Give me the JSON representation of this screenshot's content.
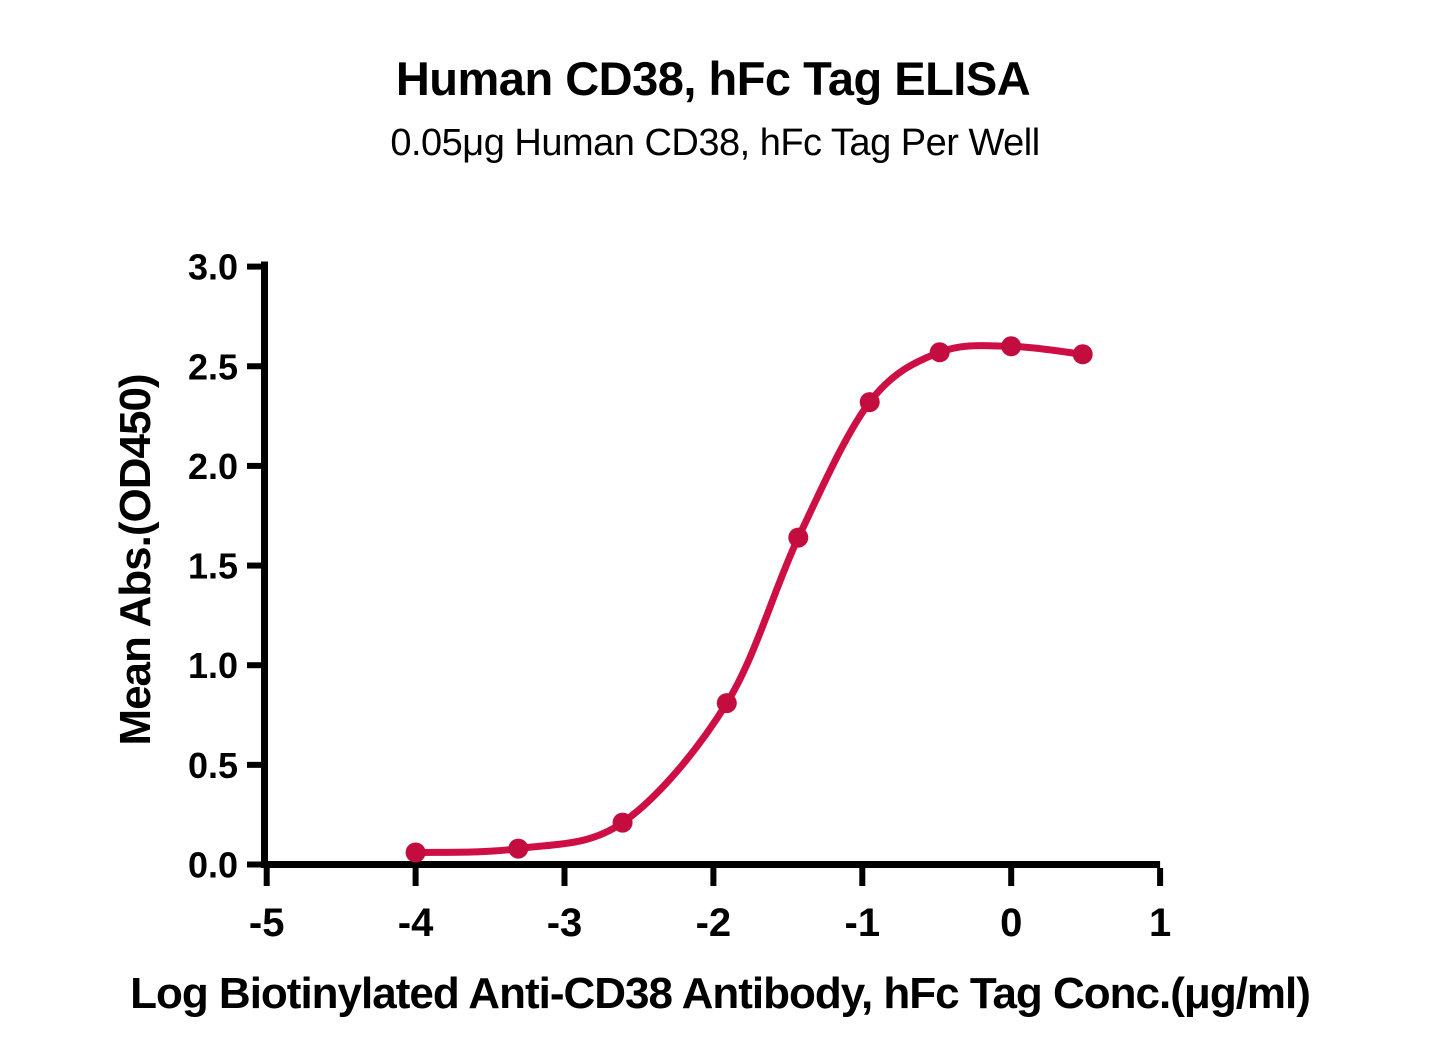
{
  "chart_data": {
    "type": "scatter",
    "curve_fit": "sigmoidal dose-response (4PL) curve through points",
    "title": "Human CD38, hFc Tag ELISA",
    "subtitle": "0.05μg Human CD38, hFc Tag Per Well",
    "xlabel": "Log Biotinylated Anti-CD38 Antibody, hFc Tag Conc.(μg/ml)",
    "ylabel": "Mean Abs.(OD450)",
    "x": [
      -4.0,
      -3.31,
      -2.61,
      -1.91,
      -1.43,
      -0.95,
      -0.48,
      0.0,
      0.48
    ],
    "y": [
      0.06,
      0.08,
      0.21,
      0.81,
      1.64,
      2.32,
      2.57,
      2.6,
      2.56
    ],
    "xlim": [
      -5,
      1
    ],
    "ylim": [
      0,
      3
    ],
    "x_ticks": [
      -5,
      -4,
      -3,
      -2,
      -1,
      0,
      1
    ],
    "y_ticks": [
      0,
      0.5,
      1,
      1.5,
      2,
      2.5,
      3
    ],
    "x_tick_labels": [
      "-5",
      "-4",
      "-3",
      "-2",
      "-1",
      "0",
      "1"
    ],
    "y_tick_labels": [
      "0.0",
      "0.5",
      "1.0",
      "1.5",
      "2.0",
      "2.5",
      "3.0"
    ],
    "grid": false,
    "legend_position": "none",
    "colors": {
      "curve": "#CE0F45",
      "marker": "#C30D3F",
      "axis": "#000000",
      "text": "#000000",
      "background": "#FFFFFF"
    }
  }
}
